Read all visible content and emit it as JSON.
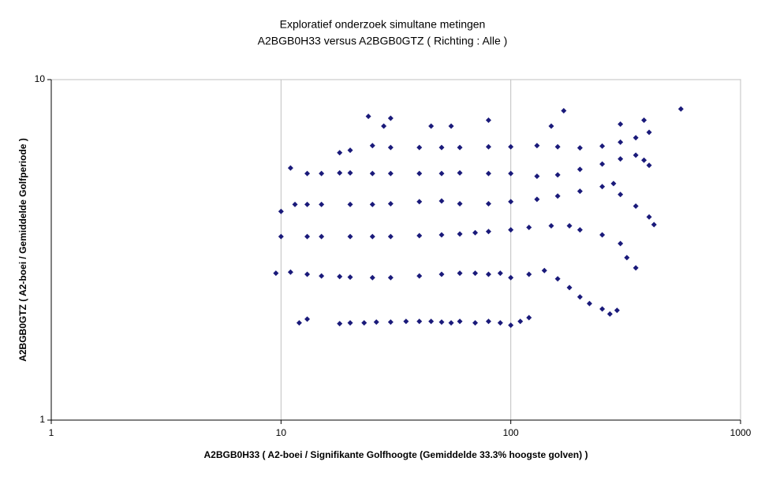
{
  "chart_data": {
    "type": "scatter",
    "title": "Exploratief onderzoek simultane metingen",
    "subtitle": "A2BGB0H33 versus A2BGB0GTZ ( Richting : Alle )",
    "x_label": "A2BGB0H33 ( A2-boei / Signifikante Golfhoogte (Gemiddelde 33.3% hoogste golven) )",
    "y_label": "A2BGB0GTZ ( A2-boei / Gemiddelde Golfperiode )",
    "x_log": true,
    "y_log": true,
    "grid": true,
    "color": "#1a1a7a",
    "xlim": [
      1,
      1000
    ],
    "xticks": [
      1,
      10,
      100,
      1000
    ],
    "ylim": [
      1,
      10
    ],
    "yticks": [
      1,
      10
    ],
    "x": [
      12,
      13,
      18,
      20,
      23,
      26,
      30,
      35,
      40,
      45,
      50,
      55,
      60,
      70,
      80,
      90,
      100,
      110,
      120,
      9.5,
      11,
      13,
      15,
      18,
      20,
      25,
      30,
      40,
      50,
      60,
      70,
      80,
      90,
      100,
      120,
      140,
      160,
      180,
      200,
      220,
      250,
      270,
      290,
      10,
      13,
      15,
      20,
      25,
      30,
      40,
      50,
      60,
      70,
      80,
      100,
      120,
      150,
      180,
      200,
      250,
      300,
      320,
      350,
      10,
      11.5,
      13,
      15,
      20,
      25,
      30,
      40,
      50,
      60,
      80,
      100,
      130,
      160,
      200,
      250,
      280,
      300,
      350,
      400,
      420,
      11,
      13,
      15,
      18,
      20,
      25,
      30,
      40,
      50,
      60,
      80,
      100,
      130,
      160,
      200,
      250,
      300,
      350,
      380,
      400,
      18,
      20,
      25,
      30,
      40,
      50,
      60,
      80,
      100,
      130,
      160,
      200,
      250,
      300,
      350,
      400,
      24,
      30,
      28,
      45,
      55,
      80,
      150,
      170,
      300,
      380,
      550
    ],
    "values": [
      1.93,
      1.98,
      1.92,
      1.93,
      1.93,
      1.94,
      1.94,
      1.95,
      1.95,
      1.95,
      1.94,
      1.93,
      1.95,
      1.93,
      1.95,
      1.93,
      1.9,
      1.95,
      2.0,
      2.7,
      2.72,
      2.68,
      2.65,
      2.64,
      2.63,
      2.62,
      2.62,
      2.65,
      2.68,
      2.7,
      2.7,
      2.68,
      2.7,
      2.62,
      2.68,
      2.75,
      2.6,
      2.45,
      2.3,
      2.2,
      2.12,
      2.05,
      2.1,
      3.46,
      3.46,
      3.46,
      3.46,
      3.46,
      3.46,
      3.48,
      3.5,
      3.52,
      3.55,
      3.58,
      3.62,
      3.68,
      3.72,
      3.72,
      3.62,
      3.5,
      3.3,
      3.0,
      2.8,
      4.1,
      4.3,
      4.3,
      4.3,
      4.3,
      4.3,
      4.32,
      4.38,
      4.4,
      4.32,
      4.32,
      4.38,
      4.45,
      4.55,
      4.7,
      4.85,
      4.95,
      4.6,
      4.25,
      3.95,
      3.75,
      5.5,
      5.3,
      5.3,
      5.32,
      5.32,
      5.3,
      5.3,
      5.3,
      5.3,
      5.32,
      5.3,
      5.3,
      5.2,
      5.25,
      5.45,
      5.65,
      5.85,
      6.0,
      5.8,
      5.6,
      6.1,
      6.2,
      6.4,
      6.32,
      6.32,
      6.32,
      6.32,
      6.35,
      6.35,
      6.4,
      6.35,
      6.3,
      6.38,
      6.55,
      6.75,
      7.0,
      7.8,
      7.7,
      7.3,
      7.3,
      7.3,
      7.6,
      7.3,
      8.1,
      7.4,
      7.6,
      8.2
    ]
  }
}
